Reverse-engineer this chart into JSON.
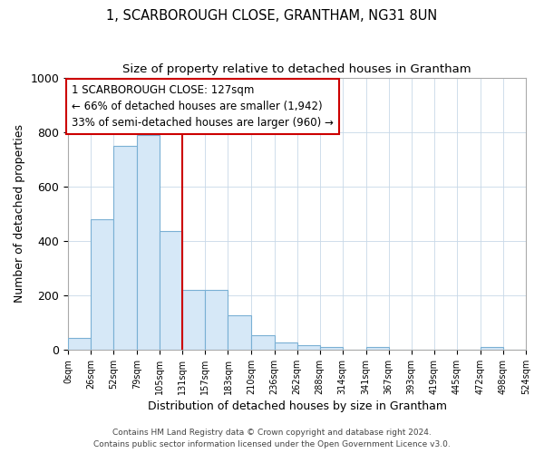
{
  "title": "1, SCARBOROUGH CLOSE, GRANTHAM, NG31 8UN",
  "subtitle": "Size of property relative to detached houses in Grantham",
  "xlabel": "Distribution of detached houses by size in Grantham",
  "ylabel": "Number of detached properties",
  "bin_edges": [
    0,
    26,
    52,
    79,
    105,
    131,
    157,
    183,
    210,
    236,
    262,
    288,
    314,
    341,
    367,
    393,
    419,
    445,
    472,
    498,
    524
  ],
  "bar_heights": [
    42,
    480,
    750,
    790,
    435,
    218,
    218,
    125,
    52,
    28,
    15,
    10,
    0,
    10,
    0,
    0,
    0,
    0,
    10,
    0
  ],
  "bar_facecolor": "#d6e8f7",
  "bar_edgecolor": "#7ab0d4",
  "grid_color": "#c8d8e8",
  "background_color": "#ffffff",
  "property_line_x": 131,
  "property_line_color": "#cc0000",
  "annotation_line1": "1 SCARBOROUGH CLOSE: 127sqm",
  "annotation_line2": "← 66% of detached houses are smaller (1,942)",
  "annotation_line3": "33% of semi-detached houses are larger (960) →",
  "annotation_box_color": "#ffffff",
  "annotation_box_edgecolor": "#cc0000",
  "ylim": [
    0,
    1000
  ],
  "tick_labels": [
    "0sqm",
    "26sqm",
    "52sqm",
    "79sqm",
    "105sqm",
    "131sqm",
    "157sqm",
    "183sqm",
    "210sqm",
    "236sqm",
    "262sqm",
    "288sqm",
    "314sqm",
    "341sqm",
    "367sqm",
    "393sqm",
    "419sqm",
    "445sqm",
    "472sqm",
    "498sqm",
    "524sqm"
  ],
  "footer_line1": "Contains HM Land Registry data © Crown copyright and database right 2024.",
  "footer_line2": "Contains public sector information licensed under the Open Government Licence v3.0.",
  "title_fontsize": 10.5,
  "subtitle_fontsize": 9.5,
  "tick_fontsize": 7,
  "ylabel_fontsize": 9,
  "xlabel_fontsize": 9,
  "annotation_fontsize": 8.5,
  "footer_fontsize": 6.5
}
